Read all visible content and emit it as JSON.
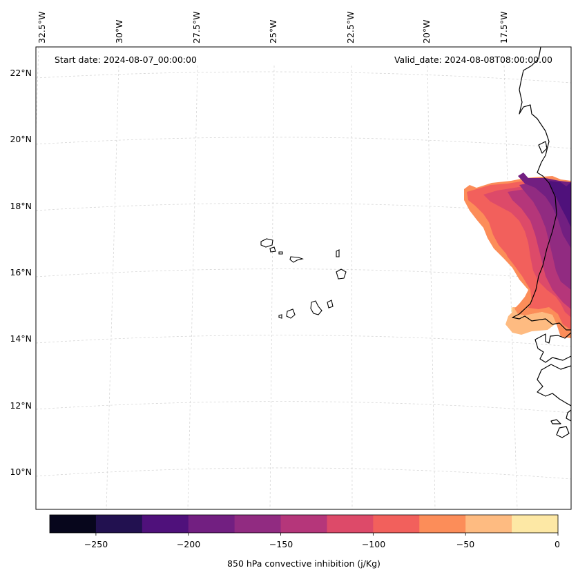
{
  "map": {
    "start_date_label": "Start date: 2024-08-07_00:00:00",
    "valid_date_label": "Valid_date: 2024-08-08T08:00:00.00",
    "lon_labels": [
      "32.5°W",
      "30°W",
      "27.5°W",
      "25°W",
      "22.5°W",
      "20°W",
      "17.5°W"
    ],
    "lat_labels": [
      "22°N",
      "20°N",
      "18°N",
      "16°N",
      "14°N",
      "12°N",
      "10°N"
    ]
  },
  "colorbar": {
    "label": "850 hPa convective inhibition (j/Kg)",
    "tick_labels": [
      "−250",
      "−200",
      "−150",
      "−100",
      "−50",
      "0"
    ],
    "levels": [
      -275,
      -250,
      -225,
      -200,
      -175,
      -150,
      -125,
      -100,
      -75,
      -50,
      -25,
      0
    ],
    "colors": [
      "#07061c",
      "#221150",
      "#4f117b",
      "#721f81",
      "#912b81",
      "#b5367a",
      "#dd4a69",
      "#f2605c",
      "#fc8d59",
      "#febb81",
      "#fde8a5"
    ]
  }
}
